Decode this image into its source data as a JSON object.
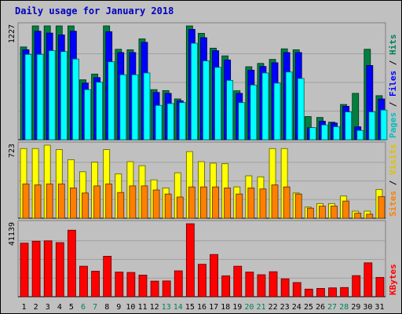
{
  "chart_data": {
    "type": "bar",
    "title": "Daily usage for January 2018",
    "categories": [
      "1",
      "2",
      "3",
      "4",
      "5",
      "6",
      "7",
      "8",
      "9",
      "10",
      "11",
      "12",
      "13",
      "14",
      "15",
      "16",
      "17",
      "18",
      "19",
      "20",
      "21",
      "22",
      "23",
      "24",
      "25",
      "26",
      "27",
      "28",
      "29",
      "30",
      "31"
    ],
    "weekend_days": [
      "6",
      "7",
      "13",
      "14",
      "20",
      "21",
      "27",
      "28"
    ],
    "colors": {
      "hits": "#008040",
      "files": "#0000ff",
      "pages": "#00ffff",
      "visits": "#ffff00",
      "sites": "#ff8000",
      "kbytes": "#ff0000",
      "weekday_label": "#000000",
      "weekend_label": "#00805c"
    },
    "panels": [
      {
        "id": "top",
        "max_label": "1227",
        "ymax": 1227,
        "legend": [
          {
            "text": "Hits",
            "color": "#00805c"
          },
          {
            "text": " / ",
            "color": "#000000"
          },
          {
            "text": "Files",
            "color": "#0000ff"
          },
          {
            "text": " / ",
            "color": "#000000"
          },
          {
            "text": "Pages",
            "color": "#00c0c0"
          }
        ],
        "series": [
          {
            "name": "Hits",
            "values": [
              1000,
              1227,
              1227,
              1227,
              1227,
              646,
              708,
              1227,
              975,
              970,
              1087,
              540,
              530,
              440,
              1227,
              1147,
              987,
              904,
              528,
              787,
              823,
              866,
              980,
              970,
              250,
              240,
              190,
              380,
              500,
              975,
              475
            ]
          },
          {
            "name": "Files",
            "values": [
              970,
              1170,
              1150,
              1130,
              1170,
              610,
              670,
              1165,
              940,
              940,
              1050,
              510,
              500,
              420,
              1190,
              1100,
              960,
              860,
              500,
              750,
              790,
              830,
              940,
              940,
              130,
              200,
              180,
              360,
              140,
              800,
              440
            ]
          },
          {
            "name": "Pages",
            "values": [
              920,
              920,
              960,
              950,
              870,
              540,
              620,
              840,
              700,
              700,
              720,
              370,
              390,
              400,
              1040,
              850,
              780,
              640,
              400,
              590,
              720,
              610,
              730,
              660,
              130,
              160,
              140,
              300,
              100,
              300,
              320
            ]
          }
        ]
      },
      {
        "id": "middle",
        "max_label": "723",
        "ymax": 723,
        "legend": [
          {
            "text": "Visits",
            "color": "#e0c000"
          },
          {
            "text": " / ",
            "color": "#000000"
          },
          {
            "text": "Sites",
            "color": "#ff8000"
          }
        ],
        "series": [
          {
            "name": "Visits",
            "values": [
              690,
              690,
              723,
              680,
              580,
              460,
              555,
              680,
              440,
              560,
              520,
              380,
              300,
              450,
              660,
              560,
              545,
              540,
              310,
              420,
              410,
              690,
              690,
              250,
              110,
              145,
              145,
              220,
              70,
              70,
              285
            ]
          },
          {
            "name": "Sites",
            "values": [
              340,
              330,
              340,
              340,
              300,
              250,
              320,
              340,
              255,
              320,
              320,
              280,
              240,
              210,
              310,
              310,
              310,
              300,
              240,
              300,
              290,
              330,
              310,
              240,
              100,
              120,
              120,
              170,
              50,
              40,
              215
            ]
          }
        ]
      },
      {
        "id": "bottom",
        "max_label": "41139",
        "ymax": 41139,
        "legend": [
          {
            "text": "KBytes",
            "color": "#ff0000"
          }
        ],
        "series": [
          {
            "name": "KBytes",
            "values": [
              30200,
              31300,
              31500,
              30500,
              37500,
              17200,
              14400,
              22800,
              13900,
              13700,
              12200,
              8800,
              8900,
              14600,
              41139,
              18300,
              23800,
              11800,
              17200,
              13900,
              12400,
              14100,
              10100,
              8000,
              4300,
              4700,
              5000,
              5200,
              11900,
              19100,
              10900
            ]
          }
        ]
      }
    ]
  }
}
